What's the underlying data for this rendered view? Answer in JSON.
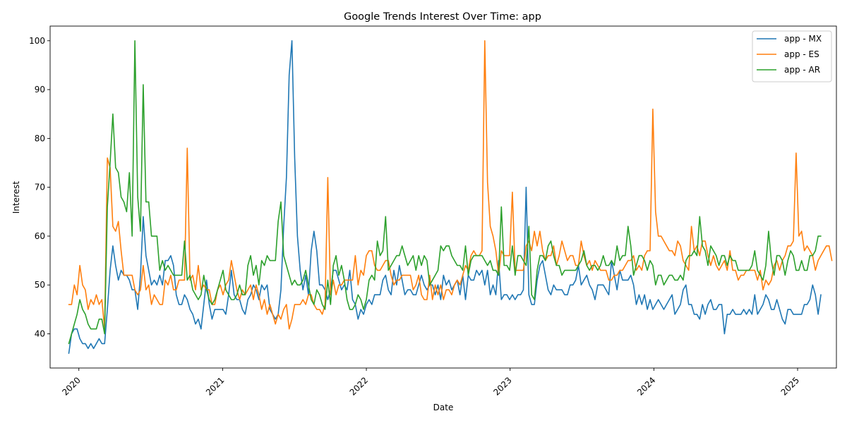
{
  "chart_data": {
    "type": "line",
    "title": "Google Trends Interest Over Time: app",
    "xlabel": "Date",
    "ylabel": "Interest",
    "x_range": [
      "2019-12",
      "2025-01"
    ],
    "ylim": [
      33,
      103
    ],
    "x_ticks": [
      {
        "label": "2020",
        "value": 2020.0
      },
      {
        "label": "2021",
        "value": 2021.0
      },
      {
        "label": "2022",
        "value": 2022.0
      },
      {
        "label": "2023",
        "value": 2023.0
      },
      {
        "label": "2024",
        "value": 2024.0
      },
      {
        "label": "2025",
        "value": 2025.0
      }
    ],
    "y_ticks": [
      40,
      50,
      60,
      70,
      80,
      90,
      100
    ],
    "grid": false,
    "legend": "top-right",
    "x_start": 2019.93,
    "x_step_weeks": 1,
    "series": [
      {
        "name": "app - MX",
        "color": "#1f77b4",
        "values": [
          36,
          40,
          41,
          41,
          39,
          38,
          38,
          37,
          38,
          37,
          38,
          39,
          38,
          38,
          45,
          53,
          58,
          54,
          51,
          53,
          52,
          52,
          51,
          49,
          49,
          45,
          52,
          64,
          56,
          53,
          50,
          51,
          50,
          52,
          50,
          55,
          55,
          56,
          54,
          48,
          46,
          46,
          48,
          47,
          45,
          44,
          42,
          43,
          41,
          46,
          51,
          46,
          43,
          45,
          45,
          45,
          45,
          44,
          48,
          53,
          48,
          47,
          47,
          45,
          44,
          47,
          48,
          50,
          49,
          47,
          50,
          49,
          50,
          45,
          44,
          43,
          44,
          49,
          62,
          72,
          93,
          100,
          76,
          60,
          53,
          49,
          52,
          48,
          57,
          61,
          57,
          50,
          50,
          49,
          47,
          49,
          53,
          53,
          51,
          49,
          50,
          49,
          53,
          47,
          46,
          43,
          45,
          44,
          46,
          47,
          46,
          48,
          48,
          48,
          51,
          52,
          49,
          48,
          53,
          50,
          54,
          51,
          48,
          49,
          49,
          48,
          48,
          50,
          52,
          50,
          49,
          50,
          50,
          48,
          50,
          47,
          52,
          50,
          51,
          49,
          50,
          51,
          48,
          52,
          47,
          52,
          51,
          51,
          53,
          52,
          53,
          50,
          53,
          48,
          50,
          48,
          55,
          47,
          48,
          48,
          47,
          48,
          47,
          48,
          48,
          49,
          70,
          48,
          46,
          46,
          51,
          54,
          55,
          52,
          49,
          48,
          50,
          49,
          49,
          49,
          48,
          48,
          50,
          50,
          51,
          54,
          50,
          51,
          52,
          50,
          49,
          47,
          50,
          50,
          50,
          49,
          48,
          55,
          52,
          49,
          53,
          51,
          51,
          51,
          52,
          50,
          46,
          48,
          46,
          48,
          45,
          47,
          45,
          46,
          47,
          46,
          45,
          46,
          47,
          48,
          44,
          45,
          46,
          49,
          50,
          46,
          46,
          44,
          44,
          43,
          46,
          44,
          46,
          47,
          45,
          45,
          46,
          46,
          40,
          44,
          44,
          45,
          44,
          44,
          44,
          45,
          44,
          45,
          44,
          48,
          44,
          45,
          46,
          48,
          47,
          45,
          45,
          47,
          45,
          43,
          42,
          45,
          45,
          44,
          44,
          44,
          44,
          46,
          46,
          47,
          50,
          48,
          44,
          48
        ]
      },
      {
        "name": "app - ES",
        "color": "#ff7f0e",
        "values": [
          46,
          46,
          50,
          48,
          54,
          50,
          49,
          45,
          47,
          46,
          48,
          46,
          47,
          41,
          76,
          74,
          62,
          61,
          63,
          57,
          52,
          52,
          52,
          52,
          49,
          48,
          49,
          54,
          49,
          50,
          46,
          48,
          47,
          46,
          46,
          51,
          50,
          52,
          49,
          49,
          51,
          51,
          51,
          78,
          51,
          52,
          49,
          54,
          49,
          50,
          49,
          49,
          46,
          46,
          49,
          50,
          48,
          50,
          51,
          55,
          52,
          49,
          47,
          49,
          48,
          49,
          50,
          47,
          50,
          48,
          45,
          47,
          44,
          46,
          44,
          42,
          44,
          43,
          45,
          46,
          41,
          43,
          46,
          46,
          46,
          47,
          46,
          48,
          48,
          46,
          45,
          45,
          44,
          46,
          72,
          48,
          51,
          48,
          50,
          50,
          51,
          51,
          51,
          51,
          56,
          50,
          53,
          52,
          56,
          57,
          57,
          54,
          53,
          53,
          54,
          55,
          55,
          52,
          50,
          51,
          51,
          52,
          52,
          52,
          52,
          49,
          50,
          52,
          48,
          47,
          47,
          52,
          47,
          50,
          48,
          50,
          47,
          49,
          49,
          48,
          50,
          51,
          50,
          52,
          54,
          53,
          56,
          57,
          56,
          56,
          57,
          100,
          71,
          62,
          60,
          57,
          52,
          57,
          56,
          56,
          56,
          69,
          53,
          53,
          53,
          53,
          58,
          59,
          57,
          61,
          58,
          61,
          57,
          55,
          56,
          56,
          58,
          54,
          56,
          59,
          57,
          55,
          56,
          56,
          54,
          54,
          59,
          56,
          54,
          55,
          53,
          55,
          54,
          53,
          53,
          53,
          51,
          51,
          52,
          52,
          53,
          53,
          54,
          55,
          55,
          56,
          53,
          54,
          53,
          56,
          57,
          57,
          86,
          65,
          60,
          60,
          59,
          58,
          57,
          57,
          56,
          59,
          58,
          55,
          54,
          53,
          62,
          57,
          58,
          56,
          59,
          59,
          56,
          54,
          56,
          54,
          53,
          54,
          55,
          53,
          57,
          53,
          53,
          51,
          52,
          52,
          53,
          53,
          53,
          53,
          51,
          53,
          49,
          51,
          50,
          51,
          54,
          55,
          53,
          55,
          56,
          58,
          58,
          59,
          77,
          60,
          61,
          57,
          58,
          57,
          56,
          53,
          55,
          56,
          57,
          58,
          58,
          55
        ]
      },
      {
        "name": "app - AR",
        "color": "#2ca02c",
        "values": [
          38,
          40,
          42,
          44,
          47,
          45,
          44,
          42,
          41,
          41,
          41,
          43,
          43,
          40,
          66,
          75,
          85,
          74,
          73,
          68,
          67,
          65,
          73,
          60,
          100,
          68,
          61,
          91,
          67,
          67,
          60,
          60,
          60,
          53,
          55,
          53,
          54,
          53,
          52,
          52,
          52,
          52,
          59,
          51,
          52,
          49,
          48,
          47,
          48,
          52,
          49,
          47,
          46,
          47,
          49,
          51,
          53,
          49,
          48,
          47,
          47,
          48,
          50,
          48,
          48,
          54,
          56,
          52,
          54,
          50,
          55,
          54,
          56,
          55,
          55,
          55,
          63,
          67,
          56,
          54,
          52,
          50,
          51,
          50,
          50,
          51,
          53,
          50,
          47,
          46,
          49,
          48,
          46,
          45,
          51,
          46,
          54,
          56,
          52,
          54,
          51,
          47,
          45,
          45,
          46,
          48,
          47,
          45,
          47,
          51,
          52,
          51,
          59,
          56,
          57,
          64,
          53,
          54,
          55,
          56,
          56,
          58,
          56,
          54,
          55,
          56,
          53,
          56,
          54,
          56,
          55,
          50,
          51,
          52,
          53,
          58,
          57,
          58,
          58,
          56,
          55,
          54,
          54,
          53,
          58,
          52,
          55,
          56,
          56,
          56,
          56,
          55,
          54,
          55,
          53,
          53,
          52,
          66,
          54,
          54,
          53,
          58,
          52,
          56,
          56,
          55,
          54,
          62,
          48,
          47,
          53,
          56,
          56,
          55,
          58,
          59,
          56,
          54,
          54,
          52,
          53,
          53,
          53,
          53,
          53,
          54,
          55,
          57,
          54,
          53,
          54,
          54,
          53,
          54,
          56,
          54,
          54,
          55,
          54,
          58,
          55,
          56,
          56,
          62,
          58,
          52,
          54,
          56,
          56,
          55,
          53,
          55,
          54,
          50,
          52,
          52,
          50,
          51,
          52,
          52,
          51,
          51,
          52,
          51,
          55,
          56,
          56,
          57,
          56,
          64,
          58,
          57,
          54,
          58,
          57,
          56,
          54,
          56,
          56,
          54,
          56,
          55,
          55,
          53,
          53,
          53,
          53,
          53,
          54,
          57,
          53,
          52,
          51,
          54,
          61,
          55,
          52,
          56,
          56,
          55,
          52,
          55,
          57,
          56,
          53,
          53,
          55,
          53,
          53,
          56,
          56,
          57,
          60,
          60
        ]
      }
    ]
  }
}
